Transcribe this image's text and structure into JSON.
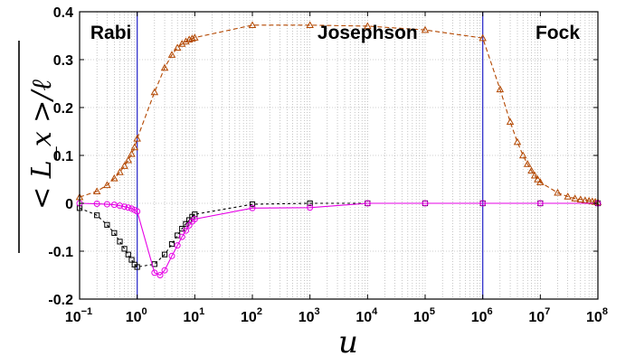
{
  "chart_data": {
    "type": "line",
    "xscale": "log",
    "xlim": [
      0.1,
      100000000
    ],
    "ylim": [
      -0.2,
      0.4
    ],
    "grid": true,
    "xlabel": "u",
    "ylabel": "< L_x >/ℓ",
    "xticks": [
      {
        "base": "10",
        "exp": "−1",
        "value": 0.1
      },
      {
        "base": "10",
        "exp": "0",
        "value": 1
      },
      {
        "base": "10",
        "exp": "1",
        "value": 10
      },
      {
        "base": "10",
        "exp": "2",
        "value": 100
      },
      {
        "base": "10",
        "exp": "3",
        "value": 1000
      },
      {
        "base": "10",
        "exp": "4",
        "value": 10000
      },
      {
        "base": "10",
        "exp": "5",
        "value": 100000
      },
      {
        "base": "10",
        "exp": "6",
        "value": 1000000
      },
      {
        "base": "10",
        "exp": "7",
        "value": 10000000
      },
      {
        "base": "10",
        "exp": "8",
        "value": 100000000
      }
    ],
    "yticks": [
      {
        "label": "-0.2",
        "value": -0.2
      },
      {
        "label": "-0.1",
        "value": -0.1
      },
      {
        "label": "0",
        "value": 0
      },
      {
        "label": "0.1",
        "value": 0.1
      },
      {
        "label": "0.2",
        "value": 0.2
      },
      {
        "label": "0.3",
        "value": 0.3
      },
      {
        "label": "0.4",
        "value": 0.4
      }
    ],
    "regions": [
      {
        "label": "Rabi",
        "x": 0.35,
        "y": 0.343
      },
      {
        "label": "Josephson",
        "x": 10000,
        "y": 0.343
      },
      {
        "label": "Fock",
        "x": 20000000,
        "y": 0.343
      }
    ],
    "vlines": [
      {
        "x": 1,
        "color": "#3333cc"
      },
      {
        "x": 1000000,
        "color": "#3333cc"
      }
    ],
    "series": [
      {
        "marker": "triangle",
        "color": "#b34700",
        "dash": "5,3",
        "x": [
          0.1,
          0.2,
          0.3,
          0.4,
          0.5,
          0.6,
          0.7,
          0.8,
          0.9,
          1.0,
          2,
          3,
          4,
          5,
          6,
          7,
          8,
          9,
          10,
          100,
          1000,
          10000,
          100000,
          1000000,
          2000000,
          3000000,
          4000000,
          5000000,
          6000000,
          7000000,
          8000000,
          9000000,
          10000000,
          20000000,
          30000000,
          40000000,
          50000000,
          60000000,
          70000000,
          80000000,
          90000000,
          100000000
        ],
        "y": [
          0.013,
          0.025,
          0.038,
          0.052,
          0.065,
          0.078,
          0.09,
          0.103,
          0.117,
          0.135,
          0.232,
          0.283,
          0.31,
          0.325,
          0.333,
          0.338,
          0.342,
          0.344,
          0.346,
          0.372,
          0.372,
          0.37,
          0.362,
          0.345,
          0.238,
          0.17,
          0.128,
          0.1,
          0.082,
          0.068,
          0.058,
          0.05,
          0.044,
          0.022,
          0.014,
          0.01,
          0.008,
          0.006,
          0.005,
          0.004,
          0.003,
          0.002
        ]
      },
      {
        "marker": "square",
        "color": "#000000",
        "dash": "3,3",
        "x": [
          0.1,
          0.2,
          0.3,
          0.4,
          0.5,
          0.6,
          0.7,
          0.8,
          0.9,
          1.0,
          2,
          3,
          4,
          5,
          6,
          7,
          8,
          9,
          10,
          100,
          1000,
          10000,
          100000,
          1000000,
          10000000,
          100000000
        ],
        "y": [
          -0.01,
          -0.025,
          -0.045,
          -0.062,
          -0.08,
          -0.095,
          -0.107,
          -0.118,
          -0.128,
          -0.133,
          -0.127,
          -0.107,
          -0.085,
          -0.067,
          -0.053,
          -0.043,
          -0.035,
          -0.028,
          -0.023,
          -0.002,
          0.0,
          0.0,
          0.0,
          0.0,
          0.0,
          0.0
        ]
      },
      {
        "marker": "circle",
        "color": "#e600e6",
        "dash": "",
        "x": [
          0.1,
          0.2,
          0.3,
          0.4,
          0.5,
          0.6,
          0.7,
          0.8,
          0.9,
          1.0,
          2,
          2.5,
          3,
          4,
          5,
          6,
          7,
          8,
          9,
          10,
          100,
          1000,
          10000,
          100000,
          1000000,
          10000000,
          100000000
        ],
        "y": [
          0.0,
          -0.001,
          -0.002,
          -0.003,
          -0.005,
          -0.007,
          -0.009,
          -0.011,
          -0.014,
          -0.017,
          -0.145,
          -0.15,
          -0.14,
          -0.11,
          -0.088,
          -0.07,
          -0.057,
          -0.046,
          -0.038,
          -0.033,
          -0.01,
          -0.009,
          0.0,
          0.0,
          0.0,
          0.0,
          0.0
        ]
      }
    ]
  }
}
